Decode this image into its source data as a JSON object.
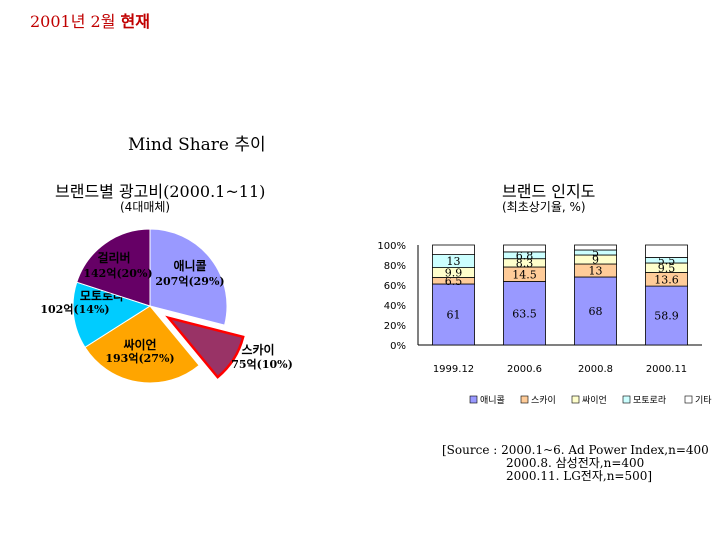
{
  "slide": {
    "title_main": "2001년 2월",
    "title_emph": "현재",
    "mind_share": "Mind Share 추이",
    "pie_title": "브랜드별 광고비(2000.1~11)",
    "pie_subtitle": "(4대매체)",
    "bar_title": "브랜드 인지도",
    "bar_subtitle": "(최초상기율, %)"
  },
  "source": {
    "line1": "[Source : 2000.1~6. Ad Power Index,n=400",
    "line2": "2000.8. 삼성전자,n=400",
    "line3": "2000.11. LG전자,n=500]"
  },
  "chart_data": [
    {
      "type": "pie",
      "title": "브랜드별 광고비(2000.1~11)",
      "subtitle": "(4대매체)",
      "slices": [
        {
          "name": "애니콜",
          "value_label": "207억(29%)",
          "percent": 29,
          "color": "#9999ff"
        },
        {
          "name": "스카이",
          "value_label": "75억(10%)",
          "percent": 10,
          "color": "#993366",
          "exploded": true
        },
        {
          "name": "싸이언",
          "value_label": "193억(27%)",
          "percent": 27,
          "color": "#ffa500"
        },
        {
          "name": "모토로라",
          "value_label": "102억(14%)",
          "percent": 14,
          "color": "#00ccff"
        },
        {
          "name": "걸리버",
          "value_label": "142억(20%)",
          "percent": 20,
          "color": "#660066"
        }
      ]
    },
    {
      "type": "bar",
      "stacked": true,
      "percent": true,
      "title": "브랜드 인지도",
      "subtitle": "(최초상기율, %)",
      "categories": [
        "1999.12",
        "2000.6",
        "2000.8",
        "2000.11"
      ],
      "y_ticks": [
        "0%",
        "20%",
        "40%",
        "60%",
        "80%",
        "100%"
      ],
      "series": [
        {
          "name": "애니콜",
          "values": [
            61,
            63.5,
            68,
            58.9
          ],
          "color": "#9999ff"
        },
        {
          "name": "스카이",
          "values": [
            6.5,
            14.5,
            13,
            13.6
          ],
          "color": "#ffcc99"
        },
        {
          "name": "싸이언",
          "values": [
            9.9,
            8.3,
            9,
            9.5
          ],
          "color": "#ffffcc"
        },
        {
          "name": "모토로라",
          "values": [
            13,
            6.8,
            5,
            5.5
          ],
          "color": "#ccffff"
        },
        {
          "name": "기타",
          "values": [
            9.6,
            6.9,
            5,
            12.5
          ],
          "color": "#ffffff"
        }
      ],
      "labels": [
        [
          "61",
          "6.5",
          "9.9",
          "13",
          ""
        ],
        [
          "63.5",
          "14.5",
          "8.3",
          "6.8",
          ""
        ],
        [
          "68",
          "13",
          "9",
          "5",
          ""
        ],
        [
          "58.9",
          "13.6",
          "9.5",
          "5.5",
          ""
        ]
      ],
      "legend": [
        "애니콜",
        "스카이",
        "싸이언",
        "모토로라",
        "기타"
      ]
    }
  ]
}
